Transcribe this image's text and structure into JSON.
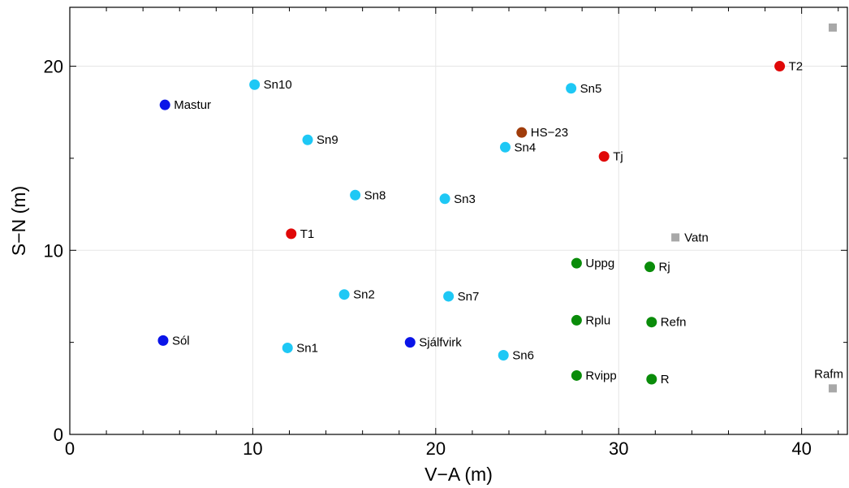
{
  "chart_data": {
    "type": "scatter",
    "xlabel": "V−A (m)",
    "ylabel": "S−N (m)",
    "xlim": [
      0,
      42.5
    ],
    "ylim": [
      0,
      23.2
    ],
    "xticks": [
      0,
      10,
      20,
      30,
      40
    ],
    "xtick_labels": [
      "0",
      "10",
      "20",
      "30",
      "40"
    ],
    "yticks": [
      0,
      10,
      20
    ],
    "ytick_labels": [
      "0",
      "10",
      "20"
    ],
    "grid": true,
    "colors": {
      "blue": "#0a14e8",
      "cyan": "#1ec8f5",
      "red": "#e00808",
      "brown": "#a03c0a",
      "green": "#0a8c0a",
      "gray": "#a8a8a8"
    },
    "points": [
      {
        "label": "Mastur",
        "x": 5.2,
        "y": 17.9,
        "color": "blue",
        "marker": "circle",
        "label_pos": "right"
      },
      {
        "label": "Sól",
        "x": 5.1,
        "y": 5.1,
        "color": "blue",
        "marker": "circle",
        "label_pos": "right"
      },
      {
        "label": "Sjálfvirk",
        "x": 18.6,
        "y": 5.0,
        "color": "blue",
        "marker": "circle",
        "label_pos": "right"
      },
      {
        "label": "Sn10",
        "x": 10.1,
        "y": 19.0,
        "color": "cyan",
        "marker": "circle",
        "label_pos": "right"
      },
      {
        "label": "Sn9",
        "x": 13.0,
        "y": 16.0,
        "color": "cyan",
        "marker": "circle",
        "label_pos": "right"
      },
      {
        "label": "Sn8",
        "x": 15.6,
        "y": 13.0,
        "color": "cyan",
        "marker": "circle",
        "label_pos": "right"
      },
      {
        "label": "Sn3",
        "x": 20.5,
        "y": 12.8,
        "color": "cyan",
        "marker": "circle",
        "label_pos": "right"
      },
      {
        "label": "Sn2",
        "x": 15.0,
        "y": 7.6,
        "color": "cyan",
        "marker": "circle",
        "label_pos": "right"
      },
      {
        "label": "Sn7",
        "x": 20.7,
        "y": 7.5,
        "color": "cyan",
        "marker": "circle",
        "label_pos": "right"
      },
      {
        "label": "Sn1",
        "x": 11.9,
        "y": 4.7,
        "color": "cyan",
        "marker": "circle",
        "label_pos": "right"
      },
      {
        "label": "Sn6",
        "x": 23.7,
        "y": 4.3,
        "color": "cyan",
        "marker": "circle",
        "label_pos": "right"
      },
      {
        "label": "Sn4",
        "x": 23.8,
        "y": 15.6,
        "color": "cyan",
        "marker": "circle",
        "label_pos": "right"
      },
      {
        "label": "Sn5",
        "x": 27.4,
        "y": 18.8,
        "color": "cyan",
        "marker": "circle",
        "label_pos": "right"
      },
      {
        "label": "HS−23",
        "x": 24.7,
        "y": 16.4,
        "color": "brown",
        "marker": "circle",
        "label_pos": "right"
      },
      {
        "label": "T1",
        "x": 12.1,
        "y": 10.9,
        "color": "red",
        "marker": "circle",
        "label_pos": "right"
      },
      {
        "label": "Tj",
        "x": 29.2,
        "y": 15.1,
        "color": "red",
        "marker": "circle",
        "label_pos": "right"
      },
      {
        "label": "T2",
        "x": 38.8,
        "y": 20.0,
        "color": "red",
        "marker": "circle",
        "label_pos": "right"
      },
      {
        "label": "Uppg",
        "x": 27.7,
        "y": 9.3,
        "color": "green",
        "marker": "circle",
        "label_pos": "right"
      },
      {
        "label": "Rj",
        "x": 31.7,
        "y": 9.1,
        "color": "green",
        "marker": "circle",
        "label_pos": "right"
      },
      {
        "label": "Rplu",
        "x": 27.7,
        "y": 6.2,
        "color": "green",
        "marker": "circle",
        "label_pos": "right"
      },
      {
        "label": "Refn",
        "x": 31.8,
        "y": 6.1,
        "color": "green",
        "marker": "circle",
        "label_pos": "right"
      },
      {
        "label": "Rvipp",
        "x": 27.7,
        "y": 3.2,
        "color": "green",
        "marker": "circle",
        "label_pos": "right"
      },
      {
        "label": "R",
        "x": 31.8,
        "y": 3.0,
        "color": "green",
        "marker": "circle",
        "label_pos": "right"
      },
      {
        "label": "Vatn",
        "x": 33.1,
        "y": 10.7,
        "color": "gray",
        "marker": "square",
        "label_pos": "right"
      },
      {
        "label": "Rafm",
        "x": 41.7,
        "y": 2.5,
        "color": "gray",
        "marker": "square",
        "label_pos": "above-left"
      },
      {
        "label": "",
        "x": 41.7,
        "y": 22.1,
        "color": "gray",
        "marker": "square",
        "label_pos": "none"
      }
    ]
  }
}
